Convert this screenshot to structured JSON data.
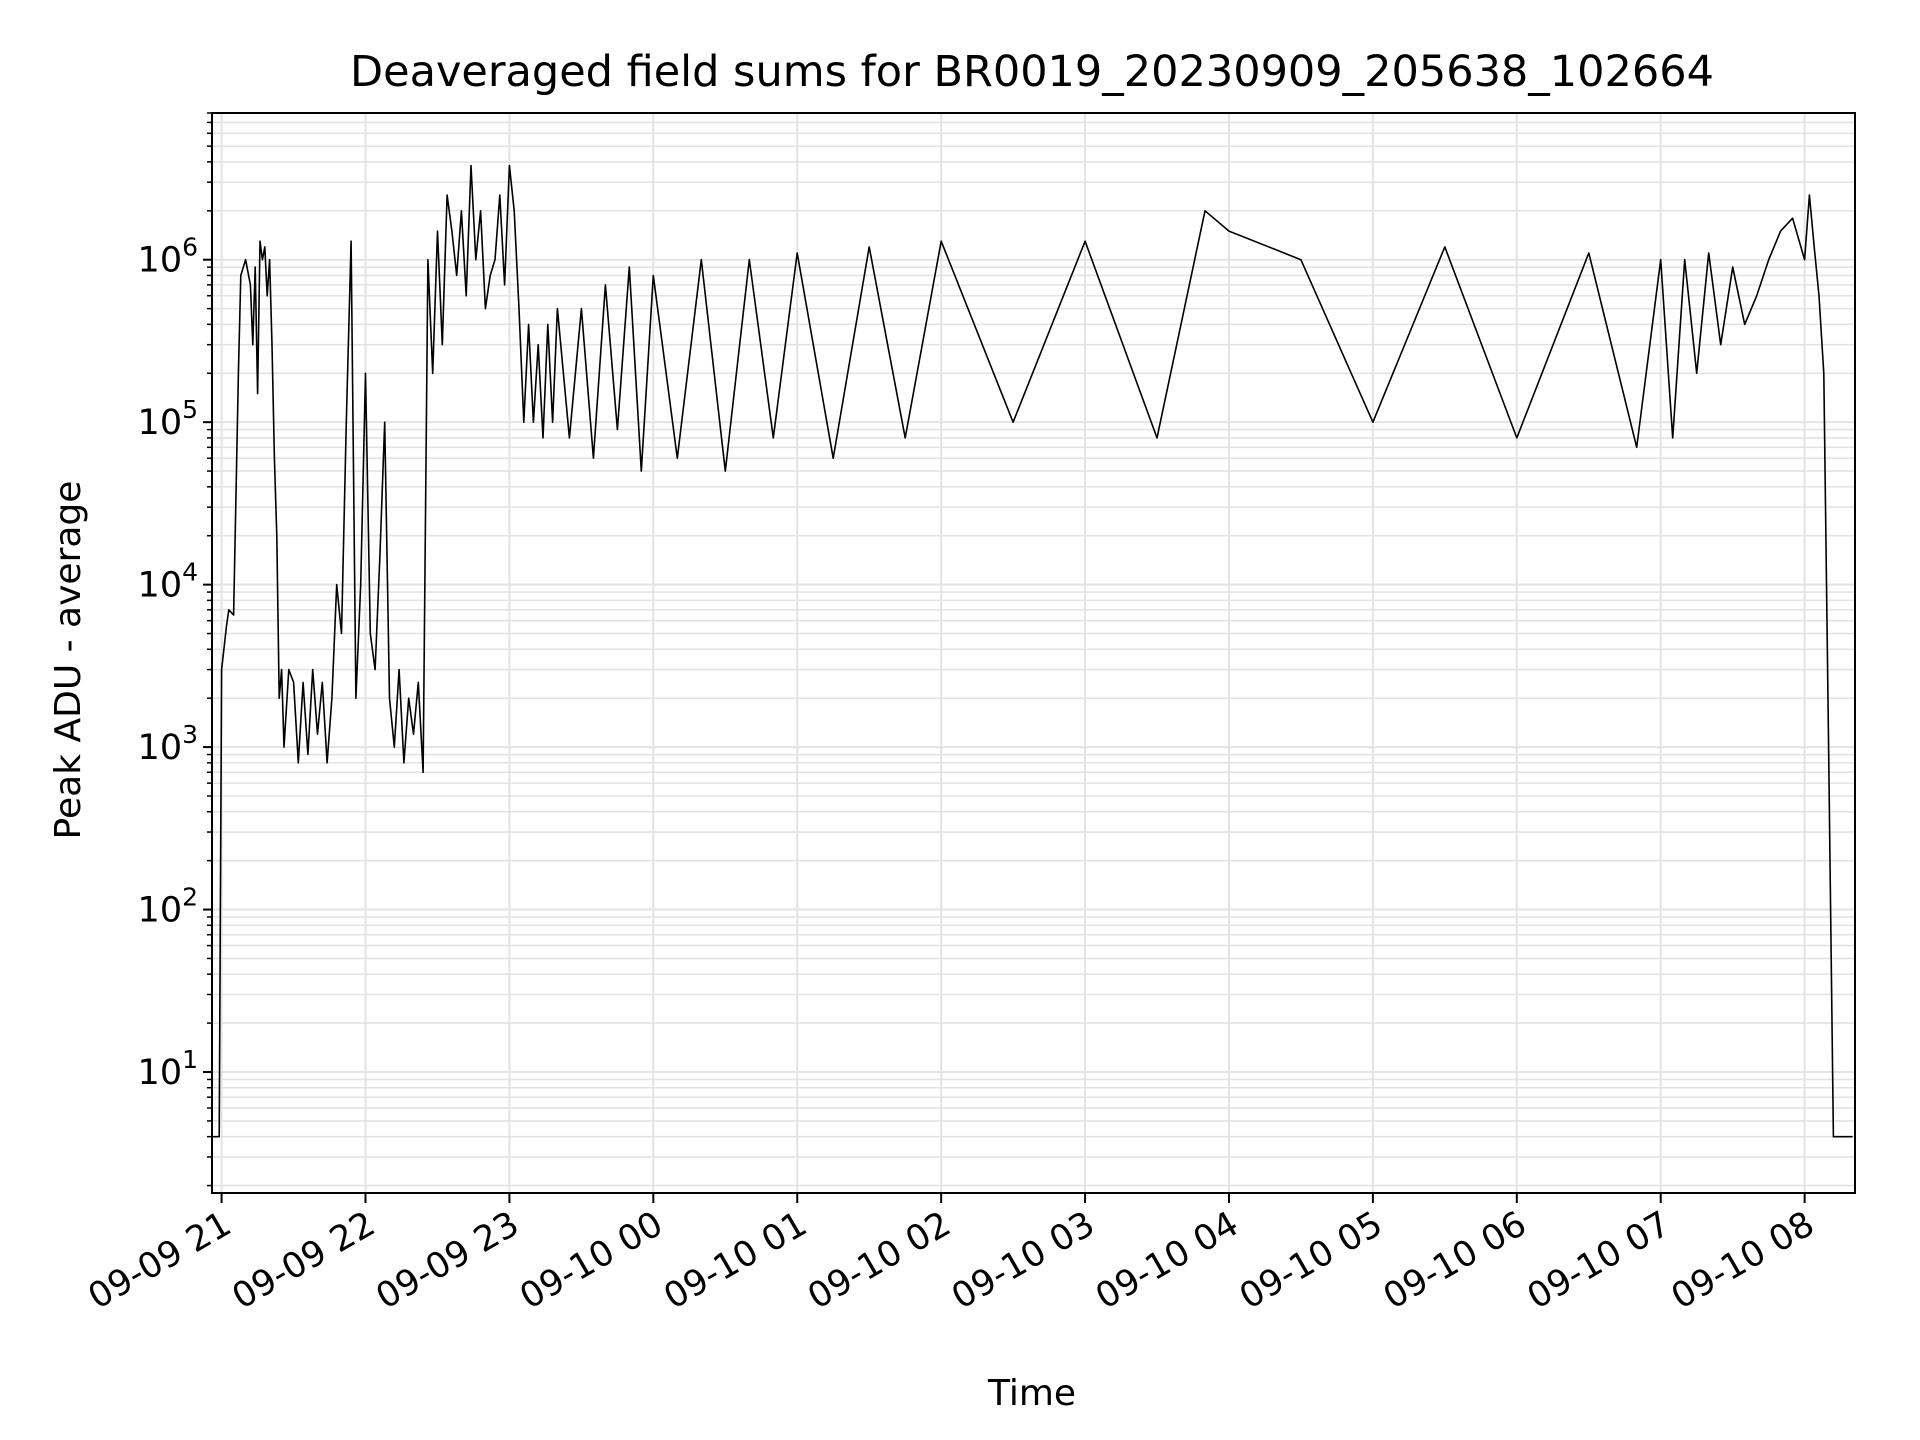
{
  "chart_data": {
    "type": "line",
    "title": "Deaveraged field sums for BR0019_20230909_205638_102664",
    "xlabel": "Time",
    "ylabel": "Peak ADU - average",
    "yscale": "log",
    "ylim": [
      1.8,
      8000000
    ],
    "xlim": [
      "2023-09-09 20:56",
      "2023-09-10 08:21"
    ],
    "grid": true,
    "line_color": "#000000",
    "grid_color": "#e3e3e3",
    "x_ticks": [
      {
        "t": "2023-09-09 21:00",
        "label": "09-09 21"
      },
      {
        "t": "2023-09-09 22:00",
        "label": "09-09 22"
      },
      {
        "t": "2023-09-09 23:00",
        "label": "09-09 23"
      },
      {
        "t": "2023-09-10 00:00",
        "label": "09-10 00"
      },
      {
        "t": "2023-09-10 01:00",
        "label": "09-10 01"
      },
      {
        "t": "2023-09-10 02:00",
        "label": "09-10 02"
      },
      {
        "t": "2023-09-10 03:00",
        "label": "09-10 03"
      },
      {
        "t": "2023-09-10 04:00",
        "label": "09-10 04"
      },
      {
        "t": "2023-09-10 05:00",
        "label": "09-10 05"
      },
      {
        "t": "2023-09-10 06:00",
        "label": "09-10 06"
      },
      {
        "t": "2023-09-10 07:00",
        "label": "09-10 07"
      },
      {
        "t": "2023-09-10 08:00",
        "label": "09-10 08"
      }
    ],
    "y_ticks": [
      {
        "value": 10,
        "base": "10",
        "exp": "1"
      },
      {
        "value": 100,
        "base": "10",
        "exp": "2"
      },
      {
        "value": 1000,
        "base": "10",
        "exp": "3"
      },
      {
        "value": 10000,
        "base": "10",
        "exp": "4"
      },
      {
        "value": 100000,
        "base": "10",
        "exp": "5"
      },
      {
        "value": 1000000,
        "base": "10",
        "exp": "6"
      }
    ],
    "series": [
      {
        "x": [
          "2023-09-09 20:56",
          "2023-09-09 20:58",
          "2023-09-09 20:59",
          "2023-09-09 21:00",
          "2023-09-09 21:02",
          "2023-09-09 21:03",
          "2023-09-09 21:05",
          "2023-09-09 21:07",
          "2023-09-09 21:08",
          "2023-09-09 21:10",
          "2023-09-09 21:12",
          "2023-09-09 21:13",
          "2023-09-09 21:14",
          "2023-09-09 21:15",
          "2023-09-09 21:16",
          "2023-09-09 21:17",
          "2023-09-09 21:18",
          "2023-09-09 21:19",
          "2023-09-09 21:20",
          "2023-09-09 21:21",
          "2023-09-09 21:22",
          "2023-09-09 21:23",
          "2023-09-09 21:24",
          "2023-09-09 21:25",
          "2023-09-09 21:26",
          "2023-09-09 21:28",
          "2023-09-09 21:30",
          "2023-09-09 21:32",
          "2023-09-09 21:34",
          "2023-09-09 21:36",
          "2023-09-09 21:38",
          "2023-09-09 21:40",
          "2023-09-09 21:42",
          "2023-09-09 21:44",
          "2023-09-09 21:46",
          "2023-09-09 21:48",
          "2023-09-09 21:50",
          "2023-09-09 21:52",
          "2023-09-09 21:54",
          "2023-09-09 21:56",
          "2023-09-09 21:58",
          "2023-09-09 22:00",
          "2023-09-09 22:02",
          "2023-09-09 22:04",
          "2023-09-09 22:06",
          "2023-09-09 22:08",
          "2023-09-09 22:10",
          "2023-09-09 22:12",
          "2023-09-09 22:14",
          "2023-09-09 22:16",
          "2023-09-09 22:18",
          "2023-09-09 22:20",
          "2023-09-09 22:22",
          "2023-09-09 22:24",
          "2023-09-09 22:26",
          "2023-09-09 22:28",
          "2023-09-09 22:30",
          "2023-09-09 22:32",
          "2023-09-09 22:34",
          "2023-09-09 22:36",
          "2023-09-09 22:38",
          "2023-09-09 22:40",
          "2023-09-09 22:42",
          "2023-09-09 22:44",
          "2023-09-09 22:46",
          "2023-09-09 22:48",
          "2023-09-09 22:50",
          "2023-09-09 22:52",
          "2023-09-09 22:54",
          "2023-09-09 22:56",
          "2023-09-09 22:58",
          "2023-09-09 23:00",
          "2023-09-09 23:02",
          "2023-09-09 23:04",
          "2023-09-09 23:06",
          "2023-09-09 23:08",
          "2023-09-09 23:10",
          "2023-09-09 23:12",
          "2023-09-09 23:14",
          "2023-09-09 23:16",
          "2023-09-09 23:18",
          "2023-09-09 23:20",
          "2023-09-09 23:25",
          "2023-09-09 23:30",
          "2023-09-09 23:35",
          "2023-09-09 23:40",
          "2023-09-09 23:45",
          "2023-09-09 23:50",
          "2023-09-09 23:55",
          "2023-09-10 00:00",
          "2023-09-10 00:10",
          "2023-09-10 00:20",
          "2023-09-10 00:30",
          "2023-09-10 00:40",
          "2023-09-10 00:50",
          "2023-09-10 01:00",
          "2023-09-10 01:15",
          "2023-09-10 01:30",
          "2023-09-10 01:45",
          "2023-09-10 02:00",
          "2023-09-10 02:30",
          "2023-09-10 03:00",
          "2023-09-10 03:30",
          "2023-09-10 03:50",
          "2023-09-10 04:00",
          "2023-09-10 04:30",
          "2023-09-10 05:00",
          "2023-09-10 05:30",
          "2023-09-10 06:00",
          "2023-09-10 06:30",
          "2023-09-10 06:50",
          "2023-09-10 07:00",
          "2023-09-10 07:05",
          "2023-09-10 07:10",
          "2023-09-10 07:15",
          "2023-09-10 07:20",
          "2023-09-10 07:25",
          "2023-09-10 07:30",
          "2023-09-10 07:35",
          "2023-09-10 07:40",
          "2023-09-10 07:45",
          "2023-09-10 07:50",
          "2023-09-10 07:55",
          "2023-09-10 08:00",
          "2023-09-10 08:02",
          "2023-09-10 08:04",
          "2023-09-10 08:06",
          "2023-09-10 08:08",
          "2023-09-10 08:10",
          "2023-09-10 08:12",
          "2023-09-10 08:14",
          "2023-09-10 08:16",
          "2023-09-10 08:18",
          "2023-09-10 08:20"
        ],
        "y": [
          4,
          4,
          4,
          3000,
          5500,
          7000,
          6500,
          200000,
          800000,
          1000000,
          700000,
          300000,
          900000,
          150000,
          1300000,
          1000000,
          1200000,
          600000,
          1000000,
          300000,
          60000,
          20000,
          2000,
          3000,
          1000,
          3000,
          2500,
          800,
          2500,
          900,
          3000,
          1200,
          2500,
          800,
          2000,
          10000,
          5000,
          100000,
          1300000,
          2000,
          10000,
          200000,
          5000,
          3000,
          15000,
          100000,
          2000,
          1000,
          3000,
          800,
          2000,
          1200,
          2500,
          700,
          1000000,
          200000,
          1500000,
          300000,
          2500000,
          1500000,
          800000,
          2000000,
          600000,
          3800000,
          1000000,
          2000000,
          500000,
          800000,
          1000000,
          2500000,
          700000,
          3800000,
          2000000,
          500000,
          100000,
          400000,
          100000,
          300000,
          80000,
          400000,
          100000,
          500000,
          80000,
          500000,
          60000,
          700000,
          90000,
          900000,
          50000,
          800000,
          60000,
          1000000,
          50000,
          1000000,
          80000,
          1100000,
          60000,
          1200000,
          80000,
          1300000,
          100000,
          1300000,
          80000,
          2000000,
          1500000,
          1000000,
          100000,
          1200000,
          80000,
          1100000,
          70000,
          1000000,
          80000,
          1000000,
          200000,
          1100000,
          300000,
          900000,
          400000,
          600000,
          1000000,
          1500000,
          1800000,
          1000000,
          2500000,
          1200000,
          600000,
          200000,
          1000,
          4,
          4,
          4,
          4,
          4
        ]
      }
    ]
  }
}
